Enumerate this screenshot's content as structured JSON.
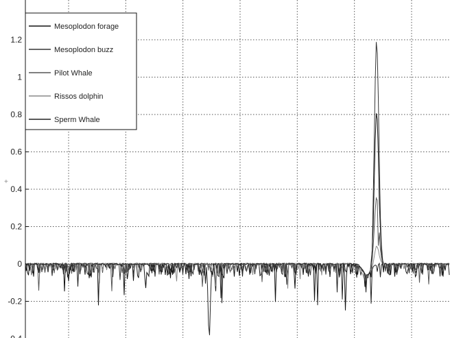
{
  "chart_data": {
    "type": "line",
    "title": "",
    "xlabel": "",
    "ylabel": "+",
    "ylim": [
      -0.4,
      1.3
    ],
    "yticks": [
      -0.4,
      -0.2,
      0,
      0.2,
      0.4,
      0.6,
      0.8,
      1,
      1.2
    ],
    "ytick_labels": [
      "-0.4",
      "-0.2",
      "0",
      "0.2",
      "0.4",
      "0.6",
      "0.8",
      "1",
      "1.2"
    ],
    "x_gridlines": 8,
    "grid": true,
    "legend_position": "top-left",
    "series": [
      {
        "name": "Mesoplodon forage",
        "color": "#111111"
      },
      {
        "name": "Mesoplodon buzz",
        "color": "#333333"
      },
      {
        "name": "Pilot Whale",
        "color": "#555555"
      },
      {
        "name": "Rissos dolphin",
        "color": "#888888"
      },
      {
        "name": "Sperm Whale",
        "color": "#222222"
      }
    ],
    "peaks": [
      {
        "series": "Mesoplodon buzz",
        "y": 1.21
      },
      {
        "series": "Mesoplodon forage",
        "y": 0.82
      },
      {
        "series": "Pilot Whale",
        "y": 0.36
      },
      {
        "series": "Rissos dolphin",
        "y": 0.1
      }
    ],
    "notable_minimum": {
      "y": -0.4
    }
  }
}
